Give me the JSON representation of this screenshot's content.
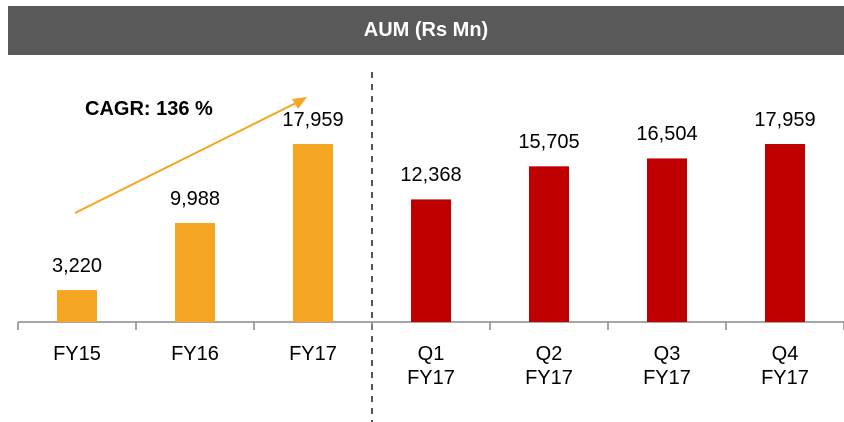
{
  "chart_data": {
    "type": "bar",
    "title": "AUM (Rs Mn)",
    "categories": [
      "FY15",
      "FY16",
      "FY17",
      "Q1 FY17",
      "Q2 FY17",
      "Q3 FY17",
      "Q4 FY17"
    ],
    "values": [
      3220,
      9988,
      17959,
      12368,
      15705,
      16504,
      17959
    ],
    "value_labels": [
      "3,220",
      "9,988",
      "17,959",
      "12,368",
      "15,705",
      "16,504",
      "17,959"
    ],
    "colors": [
      "#f5a623",
      "#f5a623",
      "#f5a623",
      "#c00000",
      "#c00000",
      "#c00000",
      "#c00000"
    ],
    "annotation": "CAGR: 136 %"
  }
}
